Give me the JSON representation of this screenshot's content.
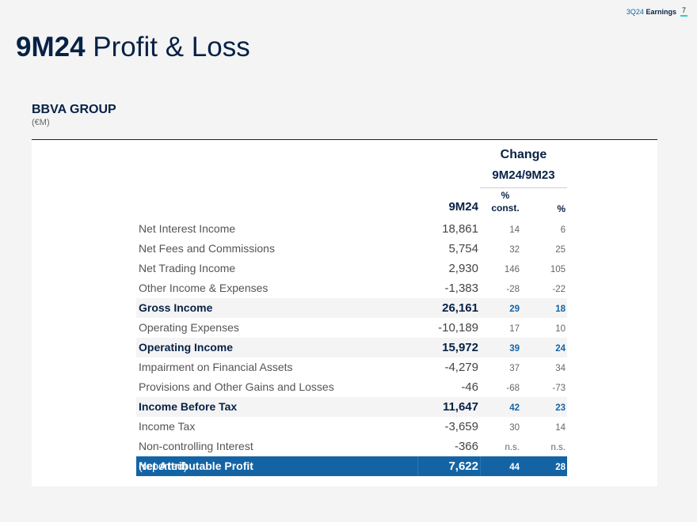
{
  "header": {
    "report": "3Q24",
    "label": "Earnings",
    "page": "7"
  },
  "title": {
    "bold": "9M24",
    "rest": "Profit & Loss"
  },
  "section": {
    "name": "BBVA GROUP",
    "unit": "(€M)"
  },
  "table": {
    "change_label": "Change",
    "period_label": "9M24/9M23",
    "col_value": "9M24",
    "col_const_line1": "%",
    "col_const_line2": "const.",
    "col_pct": "%",
    "rows": [
      {
        "label": "Net Interest Income",
        "value": "18,861",
        "const": "14",
        "pct": "6"
      },
      {
        "label": "Net Fees and Commissions",
        "value": "5,754",
        "const": "32",
        "pct": "25"
      },
      {
        "label": "Net Trading Income",
        "value": "2,930",
        "const": "146",
        "pct": "105"
      },
      {
        "label": "Other Income & Expenses",
        "value": "-1,383",
        "const": "-28",
        "pct": "-22"
      },
      {
        "label": "Gross Income",
        "value": "26,161",
        "const": "29",
        "pct": "18"
      },
      {
        "label": "Operating Expenses",
        "value": "-10,189",
        "const": "17",
        "pct": "10"
      },
      {
        "label": "Operating Income",
        "value": "15,972",
        "const": "39",
        "pct": "24"
      },
      {
        "label": "Impairment on Financial Assets",
        "value": "-4,279",
        "const": "37",
        "pct": "34"
      },
      {
        "label": "Provisions and Other Gains and Losses",
        "value": "-46",
        "const": "-68",
        "pct": "-73"
      },
      {
        "label": "Income Before Tax",
        "value": "11,647",
        "const": "42",
        "pct": "23"
      },
      {
        "label": "Income Tax",
        "value": "-3,659",
        "const": "30",
        "pct": "14"
      },
      {
        "label": "Non-controlling Interest",
        "value": "-366",
        "const": "n.s.",
        "pct": "n.s."
      },
      {
        "label": "Net Attributable Profit",
        "note": "(reported)",
        "value": "7,622",
        "const": "44",
        "pct": "28"
      }
    ]
  },
  "colors": {
    "navy": "#072146",
    "blue": "#1464a5",
    "aqua": "#2dcccd"
  }
}
